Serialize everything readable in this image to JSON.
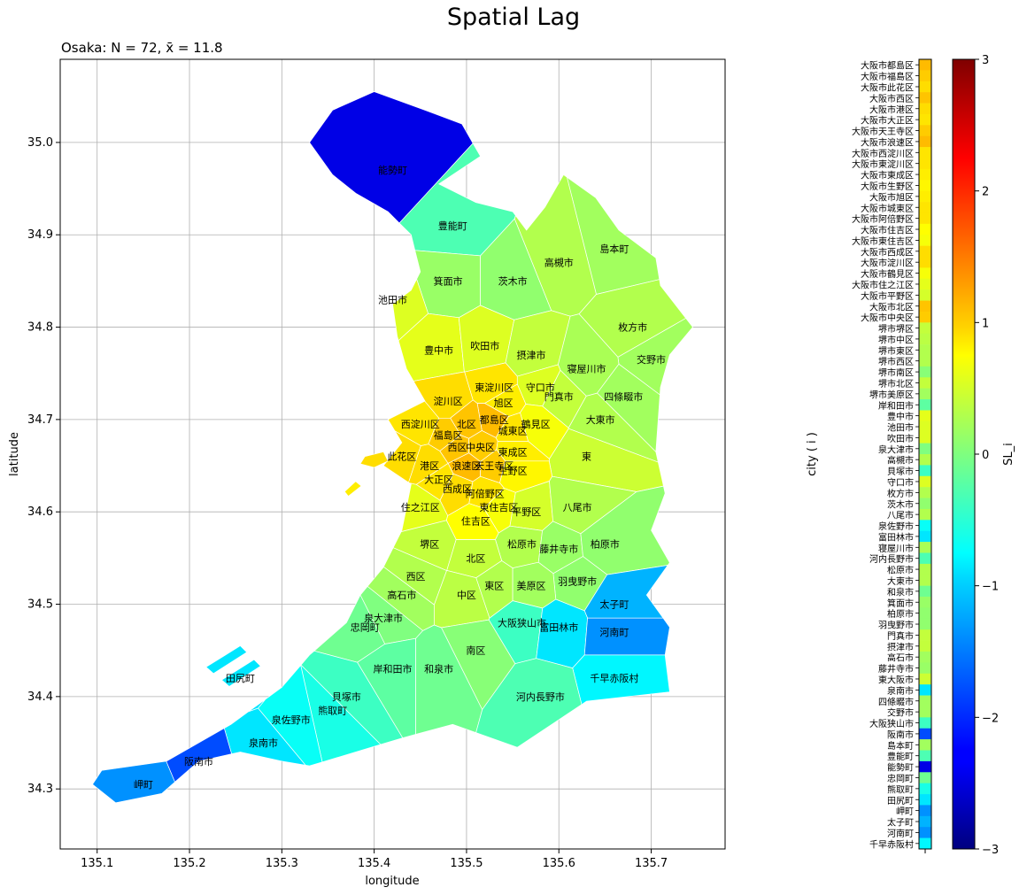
{
  "chart_data": [
    {
      "type": "choropleth-map",
      "title": "Spatial Lag",
      "subtitle": "Osaka: N = 72, x̄ = 11.8",
      "xlabel": "longitude",
      "ylabel": "latitude",
      "xlim": [
        135.06,
        135.78
      ],
      "ylim": [
        34.235,
        35.09
      ],
      "xticks": [
        "135.1",
        "135.2",
        "135.3",
        "135.4",
        "135.5",
        "135.6",
        "135.7"
      ],
      "yticks": [
        "34.3",
        "34.4",
        "34.5",
        "34.6",
        "34.7",
        "34.8",
        "34.9",
        "35.0"
      ],
      "grid": true,
      "colormap": "jet",
      "regions": [
        {
          "name": "能勢町",
          "lon": 135.42,
          "lat": 34.97,
          "value": -2.4
        },
        {
          "name": "豊能町",
          "lon": 135.485,
          "lat": 34.91,
          "value": -0.3
        },
        {
          "name": "島本町",
          "lon": 135.66,
          "lat": 34.885,
          "value": 0.2
        },
        {
          "name": "高槻市",
          "lon": 135.6,
          "lat": 34.87,
          "value": 0.3
        },
        {
          "name": "箕面市",
          "lon": 135.48,
          "lat": 34.85,
          "value": 0.15
        },
        {
          "name": "茨木市",
          "lon": 135.55,
          "lat": 34.85,
          "value": 0.1
        },
        {
          "name": "池田市",
          "lon": 135.42,
          "lat": 34.83,
          "value": 0.55
        },
        {
          "name": "枚方市",
          "lon": 135.68,
          "lat": 34.8,
          "value": 0.3
        },
        {
          "name": "豊中市",
          "lon": 135.47,
          "lat": 34.775,
          "value": 0.6
        },
        {
          "name": "吹田市",
          "lon": 135.52,
          "lat": 34.78,
          "value": 0.55
        },
        {
          "name": "摂津市",
          "lon": 135.57,
          "lat": 34.77,
          "value": 0.4
        },
        {
          "name": "交野市",
          "lon": 135.7,
          "lat": 34.765,
          "value": 0.2
        },
        {
          "name": "寝屋川市",
          "lon": 135.63,
          "lat": 34.755,
          "value": 0.25
        },
        {
          "name": "東淀川区",
          "lon": 135.53,
          "lat": 34.735,
          "value": 0.9
        },
        {
          "name": "守口市",
          "lon": 135.58,
          "lat": 34.735,
          "value": 0.55
        },
        {
          "name": "淀川区",
          "lon": 135.48,
          "lat": 34.72,
          "value": 0.95
        },
        {
          "name": "旭区",
          "lon": 135.54,
          "lat": 34.718,
          "value": 0.85
        },
        {
          "name": "門真市",
          "lon": 135.6,
          "lat": 34.725,
          "value": 0.4
        },
        {
          "name": "四條畷市",
          "lon": 135.67,
          "lat": 34.725,
          "value": 0.2
        },
        {
          "name": "都島区",
          "lon": 135.53,
          "lat": 34.7,
          "value": 1.15
        },
        {
          "name": "北区",
          "lon": 135.5,
          "lat": 34.695,
          "value": 1.1
        },
        {
          "name": "西淀川区",
          "lon": 135.45,
          "lat": 34.695,
          "value": 0.9
        },
        {
          "name": "鶴見区",
          "lon": 135.575,
          "lat": 34.695,
          "value": 0.7
        },
        {
          "name": "大東市",
          "lon": 135.645,
          "lat": 34.7,
          "value": 0.3
        },
        {
          "name": "福島区",
          "lon": 135.48,
          "lat": 34.683,
          "value": 1.05
        },
        {
          "name": "城東区",
          "lon": 135.55,
          "lat": 34.688,
          "value": 0.9
        },
        {
          "name": "西区",
          "lon": 135.49,
          "lat": 34.67,
          "value": 1.1
        },
        {
          "name": "中央区",
          "lon": 135.515,
          "lat": 34.67,
          "value": 1.05
        },
        {
          "name": "東成区",
          "lon": 135.55,
          "lat": 34.665,
          "value": 0.85
        },
        {
          "name": "東",
          "lon": 135.63,
          "lat": 34.66,
          "value": 0.45
        },
        {
          "name": "此花区",
          "lon": 135.43,
          "lat": 34.66,
          "value": 0.95
        },
        {
          "name": "港区",
          "lon": 135.46,
          "lat": 34.65,
          "value": 0.95
        },
        {
          "name": "浪速区",
          "lon": 135.5,
          "lat": 34.65,
          "value": 1.15
        },
        {
          "name": "天王寺区",
          "lon": 135.53,
          "lat": 34.65,
          "value": 1.05
        },
        {
          "name": "生野区",
          "lon": 135.55,
          "lat": 34.645,
          "value": 0.8
        },
        {
          "name": "大正区",
          "lon": 135.47,
          "lat": 34.635,
          "value": 0.9
        },
        {
          "name": "西成区",
          "lon": 135.49,
          "lat": 34.625,
          "value": 0.95
        },
        {
          "name": "阿倍野区",
          "lon": 135.52,
          "lat": 34.62,
          "value": 0.9
        },
        {
          "name": "住之江区",
          "lon": 135.45,
          "lat": 34.605,
          "value": 0.6
        },
        {
          "name": "東住吉区",
          "lon": 135.535,
          "lat": 34.605,
          "value": 0.7
        },
        {
          "name": "平野区",
          "lon": 135.565,
          "lat": 34.6,
          "value": 0.5
        },
        {
          "name": "八尾市",
          "lon": 135.62,
          "lat": 34.605,
          "value": 0.3
        },
        {
          "name": "住吉区",
          "lon": 135.51,
          "lat": 34.59,
          "value": 0.75
        },
        {
          "name": "堺区",
          "lon": 135.46,
          "lat": 34.565,
          "value": 0.4
        },
        {
          "name": "松原市",
          "lon": 135.56,
          "lat": 34.565,
          "value": 0.3
        },
        {
          "name": "藤井寺市",
          "lon": 135.6,
          "lat": 34.56,
          "value": 0.15
        },
        {
          "name": "柏原市",
          "lon": 135.65,
          "lat": 34.565,
          "value": 0.1
        },
        {
          "name": "北区(堺)",
          "label": "北区",
          "lon": 135.51,
          "lat": 34.55,
          "value": 0.4
        },
        {
          "name": "西区(堺)",
          "label": "西区",
          "lon": 135.445,
          "lat": 34.53,
          "value": 0.3
        },
        {
          "name": "羽曳野市",
          "lon": 135.62,
          "lat": 34.525,
          "value": 0.1
        },
        {
          "name": "高石市",
          "lon": 135.43,
          "lat": 34.51,
          "value": 0.2
        },
        {
          "name": "中区",
          "lon": 135.5,
          "lat": 34.51,
          "value": 0.35
        },
        {
          "name": "東区",
          "lon": 135.53,
          "lat": 34.52,
          "value": 0.3
        },
        {
          "name": "美原区",
          "lon": 135.57,
          "lat": 34.52,
          "value": 0.2
        },
        {
          "name": "太子町",
          "lon": 135.66,
          "lat": 34.5,
          "value": -1.2
        },
        {
          "name": "泉大津市",
          "lon": 135.41,
          "lat": 34.485,
          "value": 0.0
        },
        {
          "name": "忠岡町",
          "lon": 135.39,
          "lat": 34.475,
          "value": -0.1
        },
        {
          "name": "大阪狭山市",
          "lon": 135.56,
          "lat": 34.48,
          "value": -0.4
        },
        {
          "name": "富田林市",
          "lon": 135.6,
          "lat": 34.475,
          "value": -0.9
        },
        {
          "name": "河南町",
          "lon": 135.66,
          "lat": 34.47,
          "value": -1.4
        },
        {
          "name": "南区",
          "lon": 135.51,
          "lat": 34.45,
          "value": 0.05
        },
        {
          "name": "千早赤阪村",
          "lon": 135.66,
          "lat": 34.42,
          "value": -0.8
        },
        {
          "name": "岸和田市",
          "lon": 135.42,
          "lat": 34.43,
          "value": -0.2
        },
        {
          "name": "和泉市",
          "lon": 135.47,
          "lat": 34.43,
          "value": -0.1
        },
        {
          "name": "貝塚市",
          "lon": 135.37,
          "lat": 34.4,
          "value": -0.4
        },
        {
          "name": "熊取町",
          "lon": 135.355,
          "lat": 34.385,
          "value": -0.6
        },
        {
          "name": "泉佐野市",
          "lon": 135.31,
          "lat": 34.375,
          "value": -0.7
        },
        {
          "name": "河内長野市",
          "lon": 135.58,
          "lat": 34.4,
          "value": -0.3
        },
        {
          "name": "田尻町",
          "lon": 135.255,
          "lat": 34.42,
          "value": -0.9
        },
        {
          "name": "泉南市",
          "lon": 135.28,
          "lat": 34.35,
          "value": -0.9
        },
        {
          "name": "阪南市",
          "lon": 135.21,
          "lat": 34.33,
          "value": -1.8
        },
        {
          "name": "岬町",
          "lon": 135.15,
          "lat": 34.305,
          "value": -1.4
        }
      ],
      "strip": {
        "xlabel": "",
        "ylabel": "city ( i )",
        "entries": [
          {
            "name": "大阪市都島区",
            "value": 1.15
          },
          {
            "name": "大阪市福島区",
            "value": 1.05
          },
          {
            "name": "大阪市此花区",
            "value": 0.95
          },
          {
            "name": "大阪市西区",
            "value": 1.1
          },
          {
            "name": "大阪市港区",
            "value": 0.95
          },
          {
            "name": "大阪市大正区",
            "value": 0.9
          },
          {
            "name": "大阪市天王寺区",
            "value": 1.05
          },
          {
            "name": "大阪市浪速区",
            "value": 1.15
          },
          {
            "name": "大阪市西淀川区",
            "value": 0.9
          },
          {
            "name": "大阪市東淀川区",
            "value": 0.9
          },
          {
            "name": "大阪市東成区",
            "value": 0.85
          },
          {
            "name": "大阪市生野区",
            "value": 0.8
          },
          {
            "name": "大阪市旭区",
            "value": 0.85
          },
          {
            "name": "大阪市城東区",
            "value": 0.9
          },
          {
            "name": "大阪市阿倍野区",
            "value": 0.9
          },
          {
            "name": "大阪市住吉区",
            "value": 0.75
          },
          {
            "name": "大阪市東住吉区",
            "value": 0.7
          },
          {
            "name": "大阪市西成区",
            "value": 0.95
          },
          {
            "name": "大阪市淀川区",
            "value": 0.95
          },
          {
            "name": "大阪市鶴見区",
            "value": 0.7
          },
          {
            "name": "大阪市住之江区",
            "value": 0.6
          },
          {
            "name": "大阪市平野区",
            "value": 0.5
          },
          {
            "name": "大阪市北区",
            "value": 1.1
          },
          {
            "name": "大阪市中央区",
            "value": 1.05
          },
          {
            "name": "堺市堺区",
            "value": 0.4
          },
          {
            "name": "堺市中区",
            "value": 0.35
          },
          {
            "name": "堺市東区",
            "value": 0.3
          },
          {
            "name": "堺市西区",
            "value": 0.3
          },
          {
            "name": "堺市南区",
            "value": 0.05
          },
          {
            "name": "堺市北区",
            "value": 0.4
          },
          {
            "name": "堺市美原区",
            "value": 0.2
          },
          {
            "name": "岸和田市",
            "value": -0.2
          },
          {
            "name": "豊中市",
            "value": 0.6
          },
          {
            "name": "池田市",
            "value": 0.55
          },
          {
            "name": "吹田市",
            "value": 0.55
          },
          {
            "name": "泉大津市",
            "value": 0.0
          },
          {
            "name": "高槻市",
            "value": 0.3
          },
          {
            "name": "貝塚市",
            "value": -0.4
          },
          {
            "name": "守口市",
            "value": 0.55
          },
          {
            "name": "枚方市",
            "value": 0.3
          },
          {
            "name": "茨木市",
            "value": 0.1
          },
          {
            "name": "八尾市",
            "value": 0.3
          },
          {
            "name": "泉佐野市",
            "value": -0.7
          },
          {
            "name": "富田林市",
            "value": -0.9
          },
          {
            "name": "寝屋川市",
            "value": 0.25
          },
          {
            "name": "河内長野市",
            "value": -0.3
          },
          {
            "name": "松原市",
            "value": 0.3
          },
          {
            "name": "大東市",
            "value": 0.3
          },
          {
            "name": "和泉市",
            "value": -0.1
          },
          {
            "name": "箕面市",
            "value": 0.15
          },
          {
            "name": "柏原市",
            "value": 0.1
          },
          {
            "name": "羽曳野市",
            "value": 0.1
          },
          {
            "name": "門真市",
            "value": 0.4
          },
          {
            "name": "摂津市",
            "value": 0.4
          },
          {
            "name": "高石市",
            "value": 0.2
          },
          {
            "name": "藤井寺市",
            "value": 0.15
          },
          {
            "name": "東大阪市",
            "value": 0.45
          },
          {
            "name": "泉南市",
            "value": -0.9
          },
          {
            "name": "四條畷市",
            "value": 0.2
          },
          {
            "name": "交野市",
            "value": 0.2
          },
          {
            "name": "大阪狭山市",
            "value": -0.4
          },
          {
            "name": "阪南市",
            "value": -1.8
          },
          {
            "name": "島本町",
            "value": 0.2
          },
          {
            "name": "豊能町",
            "value": -0.3
          },
          {
            "name": "能勢町",
            "value": -2.4
          },
          {
            "name": "忠岡町",
            "value": -0.1
          },
          {
            "name": "熊取町",
            "value": -0.6
          },
          {
            "name": "田尻町",
            "value": -0.9
          },
          {
            "name": "岬町",
            "value": -1.4
          },
          {
            "name": "太子町",
            "value": -1.2
          },
          {
            "name": "河南町",
            "value": -1.4
          },
          {
            "name": "千早赤阪村",
            "value": -0.8
          }
        ]
      },
      "colorbar": {
        "label": "SL_i",
        "ticks": [
          "−3",
          "−2",
          "−1",
          "0",
          "1",
          "2",
          "3"
        ],
        "range": [
          -3,
          3
        ]
      }
    }
  ]
}
